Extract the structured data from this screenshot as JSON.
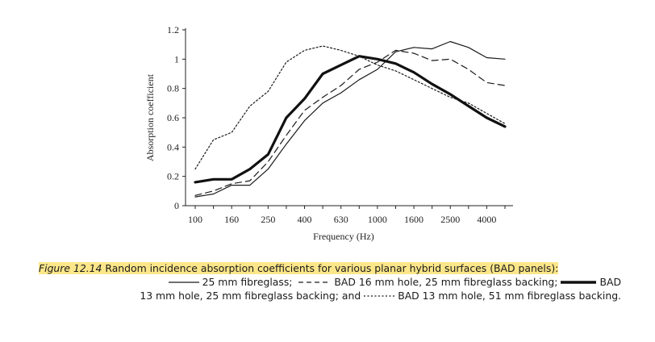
{
  "chart_data": {
    "type": "line",
    "xlabel": "Frequency (Hz)",
    "ylabel": "Absorption coefficient",
    "x_ticks": [
      "100",
      "160",
      "250",
      "400",
      "630",
      "1000",
      "1600",
      "2500",
      "4000"
    ],
    "y_ticks": [
      "0",
      "0.2",
      "0.4",
      "0.6",
      "0.8",
      "1",
      "1.2"
    ],
    "ylim": [
      0,
      1.2
    ],
    "x_scale": "log (one-third octave bands)",
    "x": [
      100,
      125,
      160,
      200,
      250,
      315,
      400,
      500,
      630,
      800,
      1000,
      1250,
      1600,
      2000,
      2500,
      3150,
      4000,
      5000
    ],
    "series": [
      {
        "name": "25 mm fibreglass",
        "style": "thin-solid",
        "values": [
          0.06,
          0.08,
          0.14,
          0.14,
          0.25,
          0.42,
          0.58,
          0.7,
          0.77,
          0.86,
          0.93,
          1.05,
          1.08,
          1.07,
          1.12,
          1.08,
          1.01,
          1.0
        ]
      },
      {
        "name": "BAD 16 mm hole, 25 mm fibreglass backing",
        "style": "dashed",
        "values": [
          0.07,
          0.1,
          0.15,
          0.17,
          0.3,
          0.48,
          0.65,
          0.74,
          0.82,
          0.93,
          0.98,
          1.06,
          1.04,
          0.99,
          1.0,
          0.93,
          0.84,
          0.82
        ]
      },
      {
        "name": "BAD 13 mm hole, 25 mm fibreglass backing",
        "style": "thick-solid",
        "values": [
          0.16,
          0.18,
          0.18,
          0.25,
          0.35,
          0.6,
          0.73,
          0.9,
          0.96,
          1.02,
          1.0,
          0.97,
          0.91,
          0.83,
          0.76,
          0.68,
          0.6,
          0.54
        ]
      },
      {
        "name": "BAD 13 mm hole, 51 mm fibreglass backing",
        "style": "dotted",
        "values": [
          0.25,
          0.45,
          0.5,
          0.68,
          0.78,
          0.98,
          1.06,
          1.09,
          1.06,
          1.02,
          0.96,
          0.92,
          0.86,
          0.8,
          0.74,
          0.7,
          0.63,
          0.56
        ]
      }
    ]
  },
  "caption": {
    "label": "Figure 12.14",
    "text1": " Random incidence absorption coefficients for various planar hybrid surfaces (BAD panels):",
    "key1": "25 mm fibreglass; ",
    "key2": "BAD 16 mm hole, 25 mm fibreglass backing;",
    "key3a": "BAD",
    "key3b": "13 mm hole, 25 mm fibreglass backing; and",
    "key4": "BAD 13 mm hole, 51 mm fibreglass backing."
  }
}
